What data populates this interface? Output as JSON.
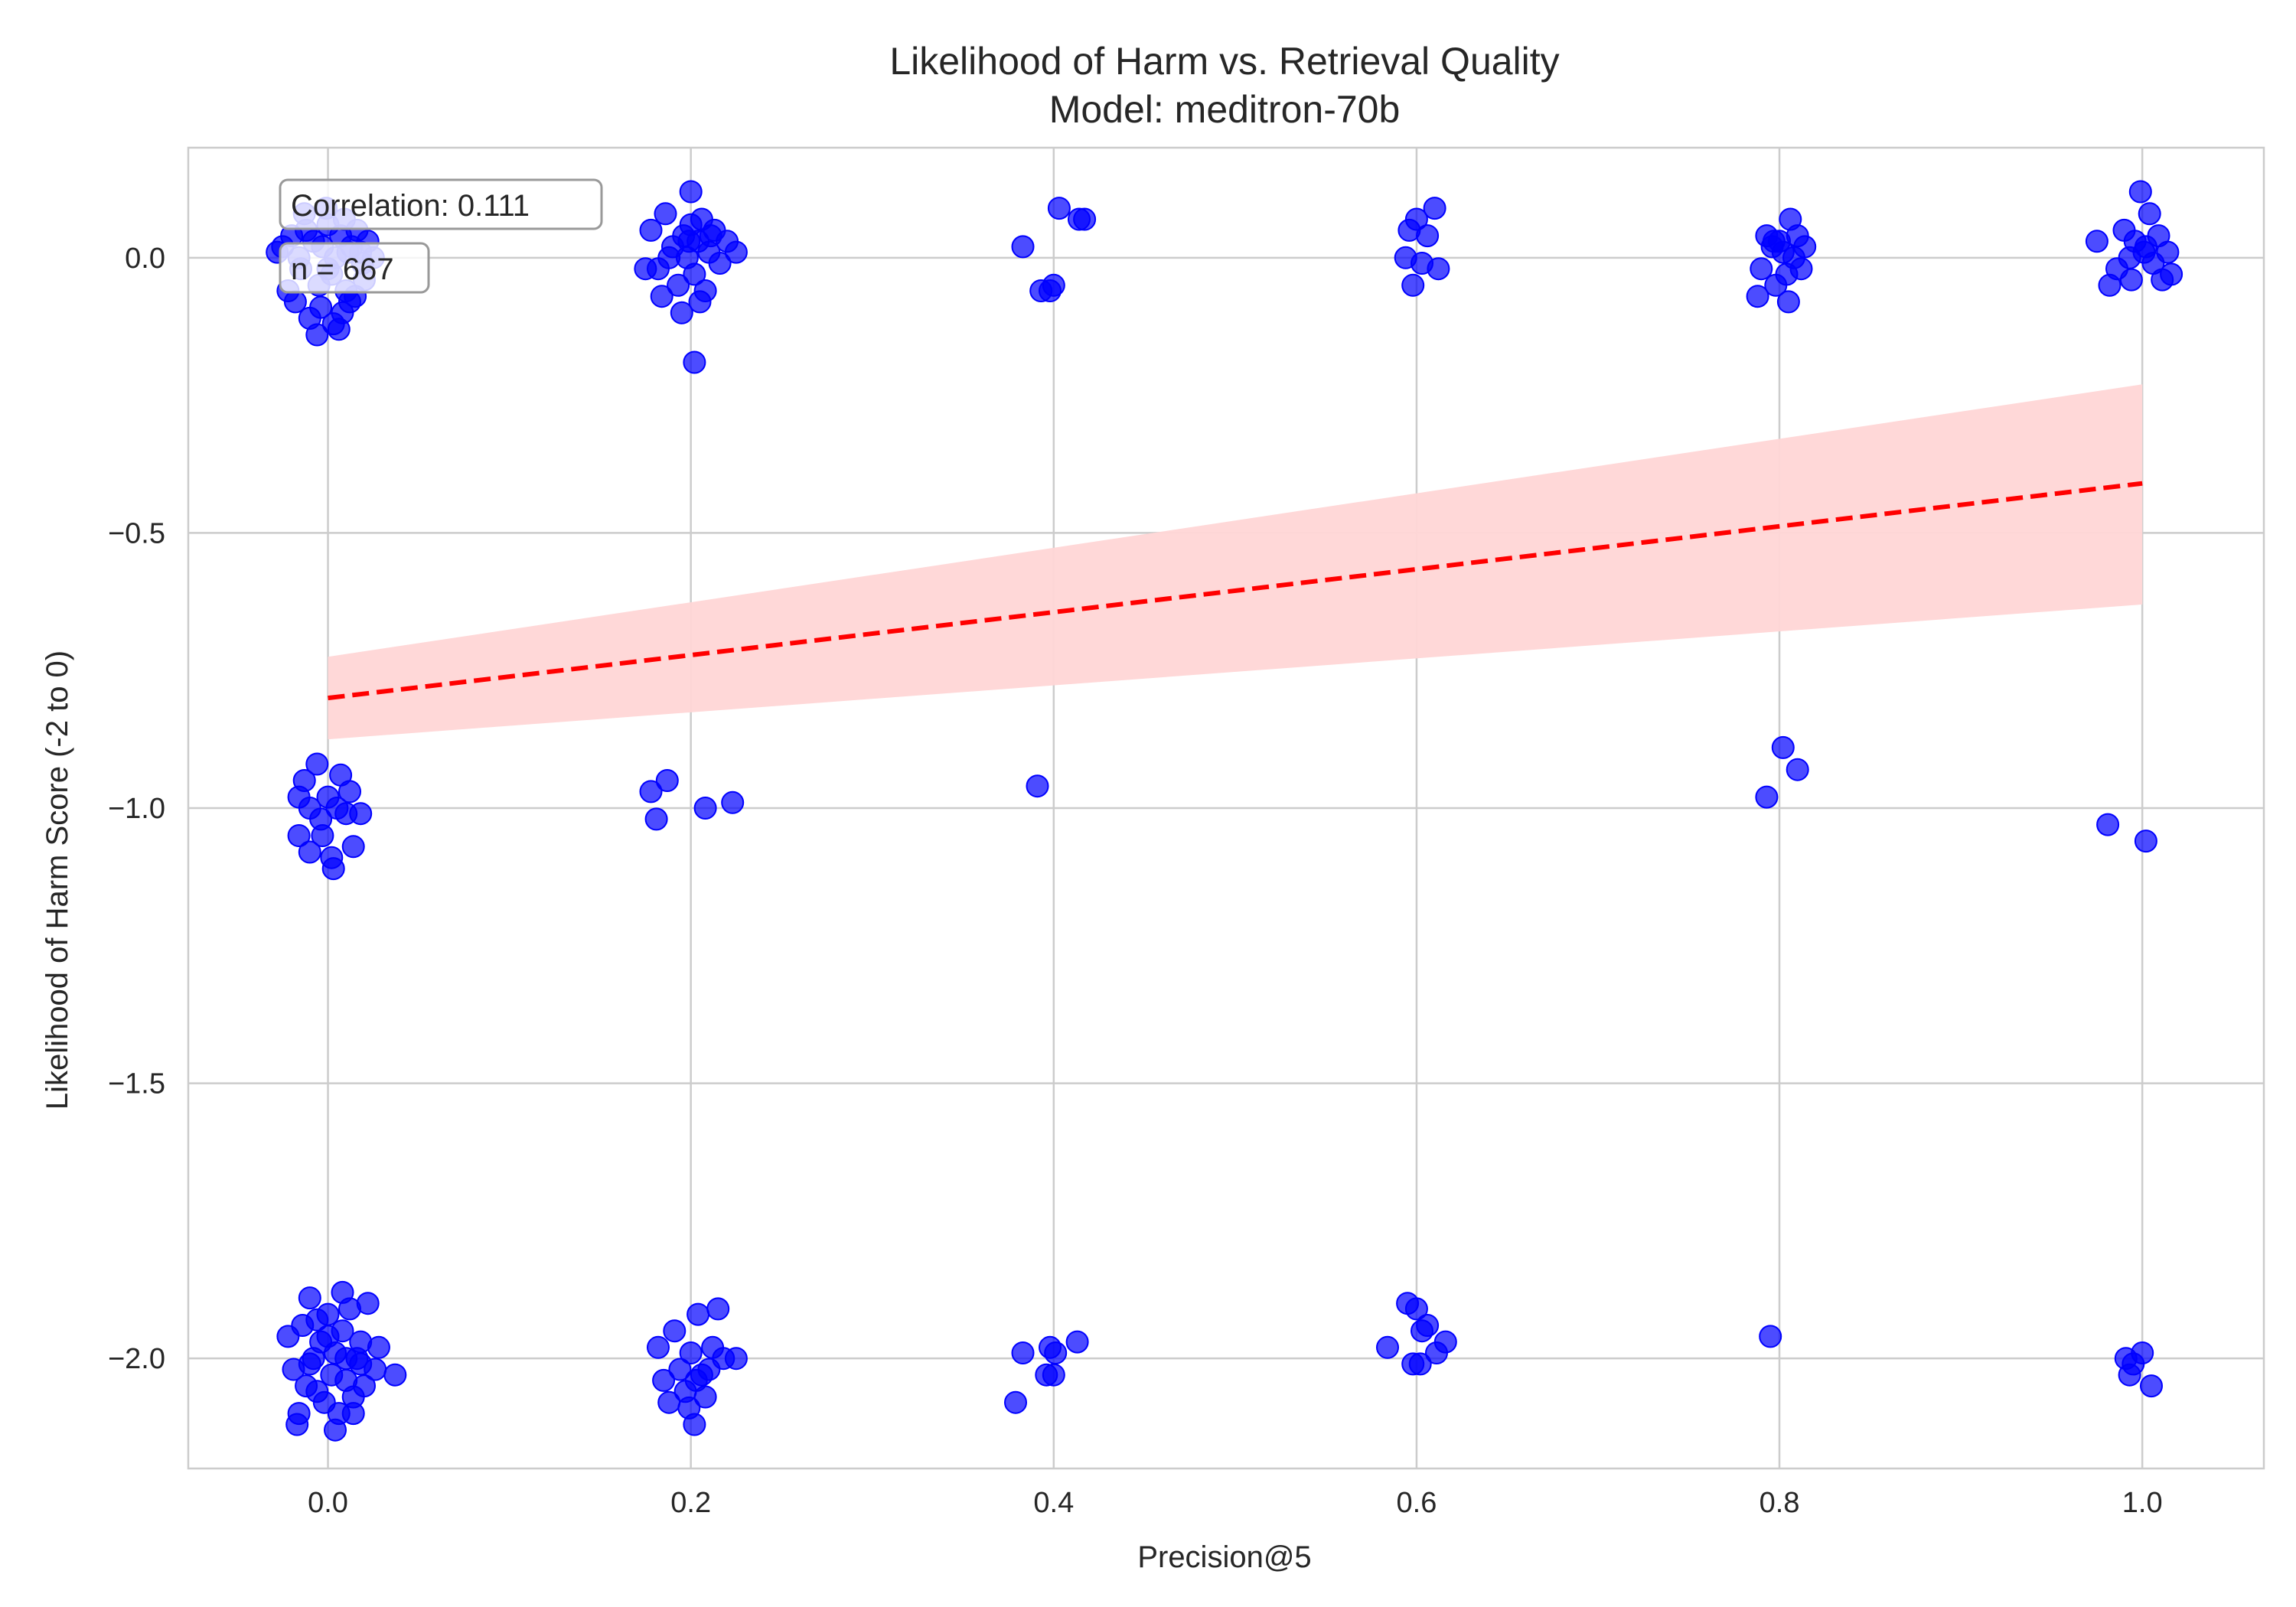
{
  "chart_data": {
    "type": "scatter",
    "title": "Likelihood of Harm vs. Retrieval Quality",
    "subtitle": "Model: meditron-70b",
    "xlabel": "Precision@5",
    "ylabel": "Likelihood of Harm Score (-2 to 0)",
    "xlim": [
      -0.077,
      1.067
    ],
    "ylim": [
      -2.2,
      0.2
    ],
    "xticks": [
      0.0,
      0.2,
      0.4,
      0.6,
      0.8,
      1.0
    ],
    "xtick_labels": [
      "0.0",
      "0.2",
      "0.4",
      "0.6",
      "0.8",
      "1.0"
    ],
    "yticks": [
      0.0,
      -0.5,
      -1.0,
      -1.5,
      -2.0
    ],
    "ytick_labels": [
      "0.0",
      "−0.5",
      "−1.0",
      "−1.5",
      "−2.0"
    ],
    "grid": true,
    "colors": {
      "points": "#0000ff",
      "trend": "#ff0000",
      "band": "#ffd6d6",
      "grid": "#cccccc"
    },
    "annotations": [
      "Correlation: 0.111",
      "n = 667"
    ],
    "trend": {
      "x": [
        0.0,
        1.0
      ],
      "y": [
        -0.8,
        -0.41
      ],
      "ci_lower": [
        -0.875,
        -0.63
      ],
      "ci_upper": [
        -0.725,
        -0.23
      ]
    },
    "points": [
      [
        -0.028,
        0.01
      ],
      [
        -0.02,
        0.04
      ],
      [
        -0.015,
        -0.02
      ],
      [
        -0.012,
        0.05
      ],
      [
        -0.008,
        0.03
      ],
      [
        -0.005,
        -0.05
      ],
      [
        -0.003,
        0.02
      ],
      [
        0.0,
        0.06
      ],
      [
        0.002,
        -0.03
      ],
      [
        0.004,
        0.0
      ],
      [
        0.007,
        0.04
      ],
      [
        0.01,
        -0.06
      ],
      [
        0.013,
        0.02
      ],
      [
        0.016,
        0.05
      ],
      [
        0.019,
        -0.01
      ],
      [
        0.022,
        0.03
      ],
      [
        0.025,
        0.0
      ],
      [
        -0.018,
        -0.08
      ],
      [
        -0.01,
        -0.11
      ],
      [
        -0.004,
        -0.09
      ],
      [
        0.003,
        -0.12
      ],
      [
        0.008,
        -0.1
      ],
      [
        0.012,
        -0.08
      ],
      [
        -0.006,
        -0.14
      ],
      [
        0.006,
        -0.13
      ],
      [
        0.015,
        -0.07
      ],
      [
        -0.022,
        -0.06
      ],
      [
        -0.013,
        0.08
      ],
      [
        -0.001,
        0.09
      ],
      [
        0.009,
        0.07
      ],
      [
        0.018,
        0.01
      ],
      [
        -0.025,
        0.02
      ],
      [
        0.02,
        -0.04
      ],
      [
        -0.016,
        0.0
      ],
      [
        0.0,
        -0.02
      ],
      [
        0.011,
        0.01
      ],
      [
        0.178,
        0.05
      ],
      [
        0.182,
        -0.02
      ],
      [
        0.186,
        0.08
      ],
      [
        0.19,
        0.02
      ],
      [
        0.193,
        -0.05
      ],
      [
        0.196,
        0.04
      ],
      [
        0.198,
        0.0
      ],
      [
        0.2,
        0.06
      ],
      [
        0.202,
        -0.03
      ],
      [
        0.204,
        0.03
      ],
      [
        0.206,
        0.07
      ],
      [
        0.208,
        -0.06
      ],
      [
        0.21,
        0.01
      ],
      [
        0.213,
        0.05
      ],
      [
        0.216,
        -0.01
      ],
      [
        0.22,
        0.03
      ],
      [
        0.225,
        0.01
      ],
      [
        0.2,
        0.12
      ],
      [
        0.202,
        -0.19
      ],
      [
        0.175,
        -0.02
      ],
      [
        0.184,
        -0.07
      ],
      [
        0.195,
        -0.1
      ],
      [
        0.205,
        -0.08
      ],
      [
        0.188,
        0.0
      ],
      [
        0.199,
        0.03
      ],
      [
        0.211,
        0.04
      ],
      [
        0.383,
        0.02
      ],
      [
        0.393,
        -0.06
      ],
      [
        0.398,
        -0.06
      ],
      [
        0.403,
        0.09
      ],
      [
        0.414,
        0.07
      ],
      [
        0.417,
        0.07
      ],
      [
        0.4,
        -0.05
      ],
      [
        0.594,
        0.0
      ],
      [
        0.598,
        -0.05
      ],
      [
        0.6,
        0.07
      ],
      [
        0.603,
        -0.01
      ],
      [
        0.606,
        0.04
      ],
      [
        0.61,
        0.09
      ],
      [
        0.612,
        -0.02
      ],
      [
        0.596,
        0.05
      ],
      [
        0.788,
        -0.07
      ],
      [
        0.79,
        -0.02
      ],
      [
        0.793,
        0.04
      ],
      [
        0.796,
        0.02
      ],
      [
        0.798,
        -0.05
      ],
      [
        0.8,
        0.03
      ],
      [
        0.802,
        0.01
      ],
      [
        0.804,
        -0.03
      ],
      [
        0.806,
        0.07
      ],
      [
        0.808,
        0.0
      ],
      [
        0.81,
        0.04
      ],
      [
        0.812,
        -0.02
      ],
      [
        0.814,
        0.02
      ],
      [
        0.805,
        -0.08
      ],
      [
        0.797,
        0.03
      ],
      [
        0.975,
        0.03
      ],
      [
        0.982,
        -0.05
      ],
      [
        0.986,
        -0.02
      ],
      [
        0.99,
        0.05
      ],
      [
        0.993,
        0.0
      ],
      [
        0.996,
        0.03
      ],
      [
        0.999,
        0.12
      ],
      [
        1.001,
        0.01
      ],
      [
        1.004,
        0.08
      ],
      [
        1.006,
        -0.01
      ],
      [
        1.009,
        0.04
      ],
      [
        1.011,
        -0.04
      ],
      [
        1.014,
        0.01
      ],
      [
        1.016,
        -0.03
      ],
      [
        0.994,
        -0.04
      ],
      [
        1.002,
        0.02
      ],
      [
        -0.016,
        -0.98
      ],
      [
        -0.013,
        -0.95
      ],
      [
        -0.01,
        -1.0
      ],
      [
        -0.006,
        -0.92
      ],
      [
        -0.004,
        -1.02
      ],
      [
        0.0,
        -0.98
      ],
      [
        0.003,
        -1.11
      ],
      [
        0.005,
        -1.0
      ],
      [
        0.007,
        -0.94
      ],
      [
        0.01,
        -1.01
      ],
      [
        0.012,
        -0.97
      ],
      [
        0.014,
        -1.07
      ],
      [
        0.018,
        -1.01
      ],
      [
        -0.016,
        -1.05
      ],
      [
        -0.01,
        -1.08
      ],
      [
        -0.003,
        -1.05
      ],
      [
        0.002,
        -1.09
      ],
      [
        0.178,
        -0.97
      ],
      [
        0.181,
        -1.02
      ],
      [
        0.187,
        -0.95
      ],
      [
        0.208,
        -1.0
      ],
      [
        0.223,
        -0.99
      ],
      [
        0.391,
        -0.96
      ],
      [
        0.793,
        -0.98
      ],
      [
        0.802,
        -0.89
      ],
      [
        0.81,
        -0.93
      ],
      [
        0.981,
        -1.03
      ],
      [
        1.002,
        -1.06
      ],
      [
        -0.022,
        -1.96
      ],
      [
        -0.019,
        -2.02
      ],
      [
        -0.016,
        -2.1
      ],
      [
        -0.014,
        -1.94
      ],
      [
        -0.012,
        -2.05
      ],
      [
        -0.01,
        -1.89
      ],
      [
        -0.008,
        -2.0
      ],
      [
        -0.006,
        -2.06
      ],
      [
        -0.004,
        -1.97
      ],
      [
        -0.002,
        -2.08
      ],
      [
        0.0,
        -1.92
      ],
      [
        0.002,
        -2.03
      ],
      [
        0.004,
        -1.99
      ],
      [
        0.006,
        -2.1
      ],
      [
        0.008,
        -1.95
      ],
      [
        0.01,
        -2.04
      ],
      [
        0.012,
        -1.91
      ],
      [
        0.014,
        -2.07
      ],
      [
        0.016,
        -2.0
      ],
      [
        0.018,
        -1.97
      ],
      [
        0.02,
        -2.05
      ],
      [
        0.022,
        -1.9
      ],
      [
        0.026,
        -2.02
      ],
      [
        0.037,
        -2.03
      ],
      [
        0.008,
        -1.88
      ],
      [
        -0.017,
        -2.12
      ],
      [
        0.014,
        -2.1
      ],
      [
        -0.006,
        -1.93
      ],
      [
        0.004,
        -2.13
      ],
      [
        0.01,
        -2.0
      ],
      [
        -0.01,
        -2.01
      ],
      [
        0.0,
        -1.96
      ],
      [
        0.018,
        -2.01
      ],
      [
        0.028,
        -1.98
      ],
      [
        0.182,
        -1.98
      ],
      [
        0.185,
        -2.04
      ],
      [
        0.188,
        -2.08
      ],
      [
        0.191,
        -1.95
      ],
      [
        0.194,
        -2.02
      ],
      [
        0.197,
        -2.06
      ],
      [
        0.2,
        -1.99
      ],
      [
        0.202,
        -2.12
      ],
      [
        0.204,
        -1.92
      ],
      [
        0.206,
        -2.03
      ],
      [
        0.208,
        -2.07
      ],
      [
        0.212,
        -1.98
      ],
      [
        0.215,
        -1.91
      ],
      [
        0.218,
        -2.0
      ],
      [
        0.225,
        -2.0
      ],
      [
        0.199,
        -2.09
      ],
      [
        0.203,
        -2.04
      ],
      [
        0.21,
        -2.02
      ],
      [
        0.379,
        -2.08
      ],
      [
        0.383,
        -1.99
      ],
      [
        0.396,
        -2.03
      ],
      [
        0.398,
        -1.98
      ],
      [
        0.401,
        -1.99
      ],
      [
        0.413,
        -1.97
      ],
      [
        0.4,
        -2.03
      ],
      [
        0.584,
        -1.98
      ],
      [
        0.595,
        -1.9
      ],
      [
        0.598,
        -2.01
      ],
      [
        0.6,
        -1.91
      ],
      [
        0.603,
        -1.95
      ],
      [
        0.606,
        -1.94
      ],
      [
        0.611,
        -1.99
      ],
      [
        0.616,
        -1.97
      ],
      [
        0.602,
        -2.01
      ],
      [
        0.795,
        -1.96
      ],
      [
        0.991,
        -2.0
      ],
      [
        0.993,
        -2.03
      ],
      [
        0.995,
        -2.01
      ],
      [
        1.0,
        -1.99
      ],
      [
        1.005,
        -2.05
      ]
    ]
  }
}
